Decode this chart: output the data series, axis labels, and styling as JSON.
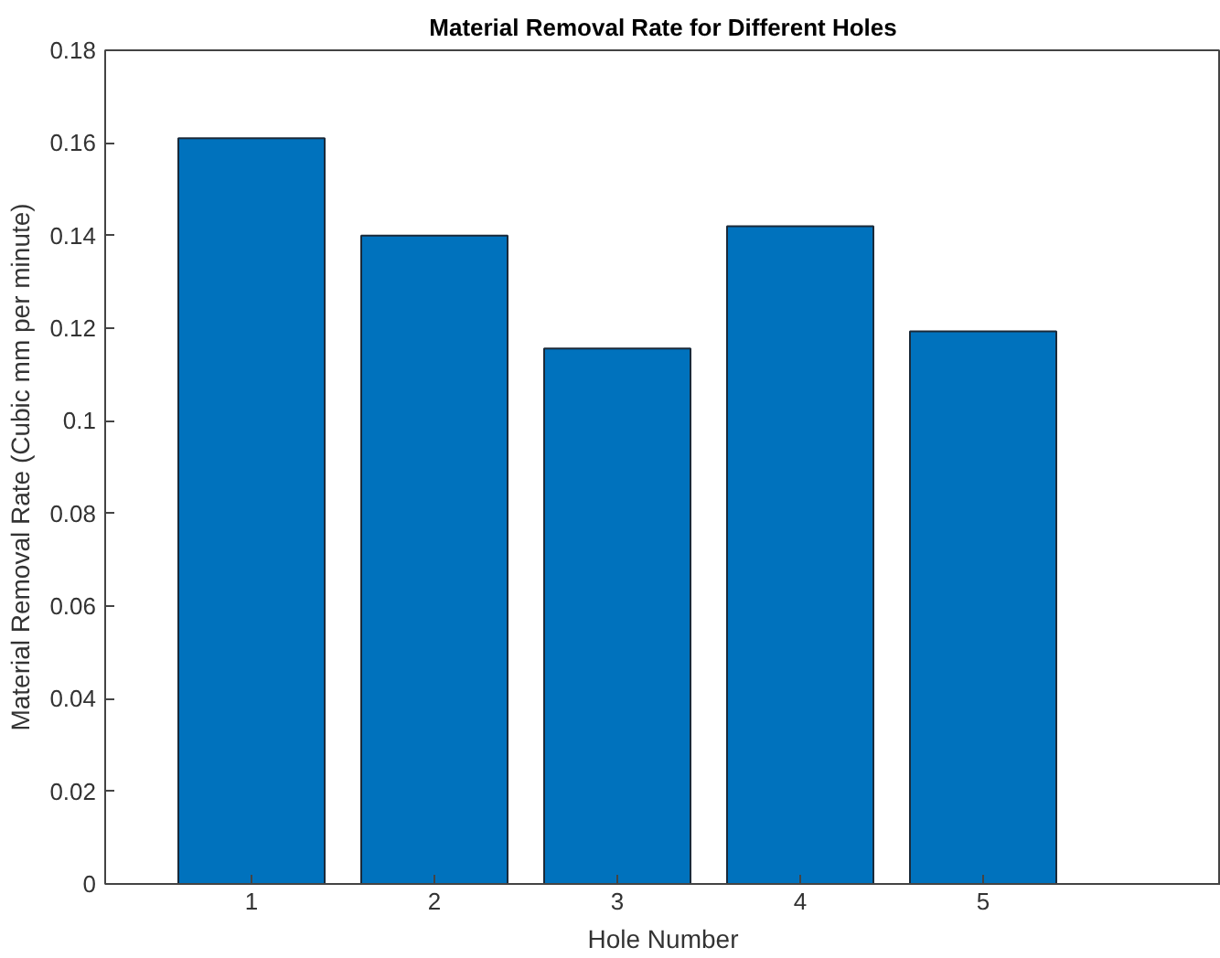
{
  "chart_data": {
    "type": "bar",
    "title": "Material Removal Rate for Different Holes",
    "xlabel": "Hole Number",
    "ylabel": "Material Removal Rate (Cubic mm per minute)",
    "x": [
      1,
      2,
      3,
      4,
      5
    ],
    "values": [
      0.161,
      0.14,
      0.1156,
      0.142,
      0.1193
    ],
    "color": "#0072bd",
    "xlim": [
      0.2,
      6.3
    ],
    "xticks": [
      1,
      2,
      3,
      4,
      5
    ],
    "ylim": [
      0,
      0.18
    ],
    "yticks": [
      0,
      0.02,
      0.04,
      0.06,
      0.08,
      0.1,
      0.12,
      0.14,
      0.16,
      0.18
    ],
    "grid": false
  }
}
